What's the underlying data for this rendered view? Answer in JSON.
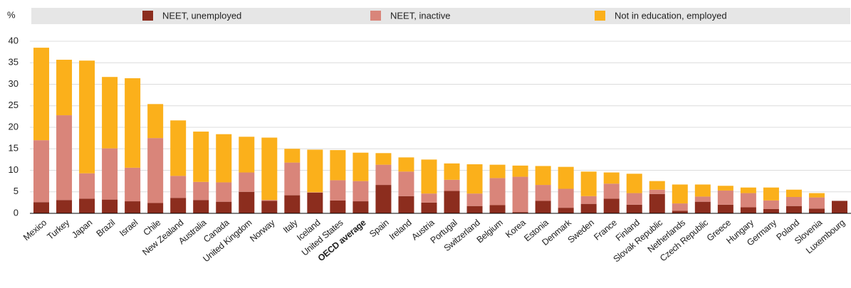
{
  "chart_data": {
    "type": "stacked_bar",
    "y_unit": "%",
    "categories": [
      "Mexico",
      "Turkey",
      "Japan",
      "Brazil",
      "Israel",
      "Chile",
      "New Zealand",
      "Australia",
      "Canada",
      "United Kingdom",
      "Norway",
      "Italy",
      "Iceland",
      "United States",
      "OECD average",
      "Spain",
      "Ireland",
      "Austria",
      "Portugal",
      "Switzerland",
      "Belgium",
      "Korea",
      "Estonia",
      "Denmark",
      "Sweden",
      "France",
      "Finland",
      "Slovak Republic",
      "Netherlands",
      "Czech Republic",
      "Greece",
      "Hungary",
      "Germany",
      "Poland",
      "Slovenia",
      "Luxembourg"
    ],
    "highlight_category": 14,
    "series": [
      {
        "name": "NEET, unemployed",
        "color": "#8c2d1e",
        "values": [
          2.6,
          3.1,
          3.4,
          3.2,
          2.8,
          2.4,
          3.6,
          3.1,
          2.7,
          5.0,
          2.9,
          4.2,
          4.8,
          3.0,
          2.8,
          6.6,
          4.0,
          2.5,
          5.2,
          1.7,
          1.9,
          0.3,
          2.9,
          1.3,
          2.2,
          3.4,
          2.0,
          4.5,
          0.6,
          2.7,
          2.0,
          1.4,
          1.0,
          1.7,
          1.1,
          2.9
        ]
      },
      {
        "name": "NEET, inactive",
        "color": "#d9857a",
        "values": [
          14.4,
          19.7,
          5.9,
          11.9,
          7.8,
          15.1,
          5.1,
          4.2,
          4.5,
          4.5,
          0.2,
          7.6,
          0.1,
          4.7,
          4.7,
          4.7,
          5.7,
          2.1,
          2.6,
          2.9,
          6.3,
          8.2,
          3.7,
          4.4,
          1.8,
          3.5,
          2.7,
          1.0,
          1.7,
          1.2,
          3.3,
          3.3,
          2.0,
          2.1,
          2.6,
          0
        ]
      },
      {
        "name": "Not in education, employed",
        "color": "#fbb01b",
        "values": [
          21.5,
          12.9,
          26.2,
          16.6,
          20.8,
          7.9,
          12.9,
          11.7,
          11.2,
          8.3,
          14.5,
          3.2,
          9.9,
          7.0,
          6.6,
          2.7,
          3.3,
          7.9,
          3.8,
          6.8,
          3.1,
          2.6,
          4.4,
          5.1,
          5.7,
          2.6,
          4.5,
          2.0,
          4.4,
          2.8,
          1.1,
          1.3,
          3.0,
          1.7,
          1.0,
          0
        ]
      }
    ],
    "ylim": [
      0,
      40
    ],
    "yticks": [
      0,
      5,
      10,
      15,
      20,
      25,
      30,
      35,
      40
    ],
    "grid": true
  }
}
